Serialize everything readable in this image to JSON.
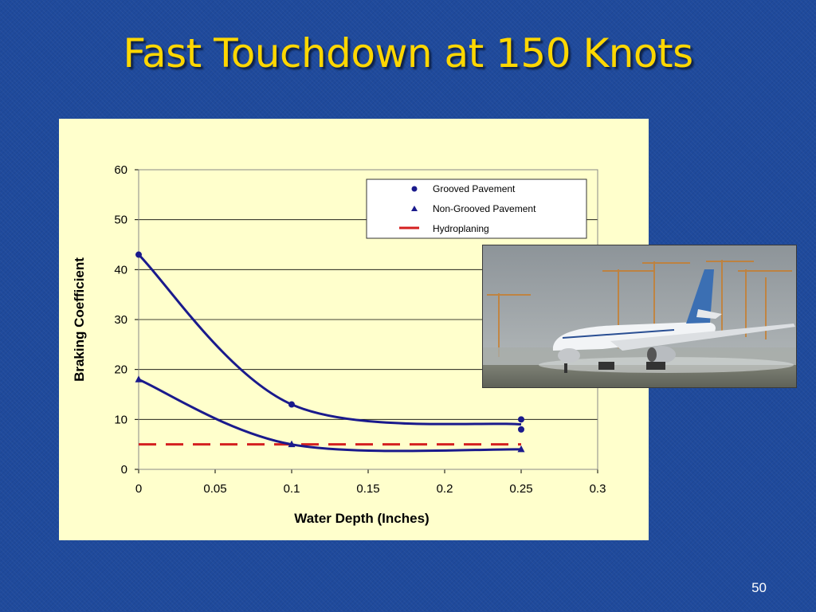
{
  "slide": {
    "title": "Fast Touchdown at 150 Knots",
    "page_number": "50"
  },
  "colors": {
    "background": "#1f4a9c",
    "title": "#ffd700",
    "chart_background": "#ffffcc",
    "series_line": "#1a1a8c",
    "hydroplaning": "#d42020"
  },
  "photo": {
    "subject": "airliner-landing-on-wet-runway"
  },
  "chart_data": {
    "type": "line",
    "xlabel": "Water Depth (Inches)",
    "ylabel": "Braking Coefficient",
    "xlim": [
      0,
      0.3
    ],
    "ylim": [
      0,
      60
    ],
    "x_ticks": [
      "0",
      "0.05",
      "0.1",
      "0.15",
      "0.2",
      "0.25",
      "0.3"
    ],
    "y_ticks": [
      "0",
      "10",
      "20",
      "30",
      "40",
      "50",
      "60"
    ],
    "grid": "horizontal",
    "legend_position": "top-right",
    "series": [
      {
        "name": "Grooved Pavement",
        "marker": "circle",
        "points": [
          [
            0,
            43
          ],
          [
            0.1,
            13
          ],
          [
            0.25,
            10
          ],
          [
            0.25,
            8
          ]
        ],
        "fit": [
          [
            0,
            43
          ],
          [
            0.1,
            13
          ],
          [
            0.25,
            9
          ]
        ]
      },
      {
        "name": "Non-Grooved Pavement",
        "marker": "triangle",
        "points": [
          [
            0,
            18
          ],
          [
            0.1,
            5
          ],
          [
            0.25,
            4
          ]
        ],
        "fit": [
          [
            0,
            18
          ],
          [
            0.1,
            5
          ],
          [
            0.25,
            4
          ]
        ]
      },
      {
        "name": "Hydroplaning",
        "marker": "dashed-line",
        "points": [
          [
            0,
            5
          ],
          [
            0.25,
            5
          ]
        ]
      }
    ]
  }
}
